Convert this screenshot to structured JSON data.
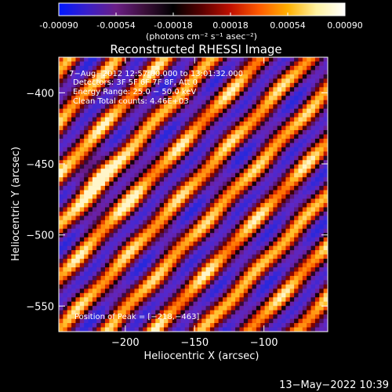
{
  "colorbar": {
    "tick_labels": [
      "-0.00090",
      "-0.00054",
      "-0.00018",
      "0.00018",
      "0.00054",
      "0.00090"
    ],
    "tick_values": [
      -0.0009,
      -0.00054,
      -0.00018,
      0.00018,
      0.00054,
      0.0009
    ],
    "range": [
      -0.0009,
      0.0009
    ],
    "units_label": "(photons cm⁻² s⁻¹ asec⁻²)",
    "palette": [
      "#0018ff",
      "#3a1fc8",
      "#6b1f86",
      "#3b0f3a",
      "#000000",
      "#5a0000",
      "#c01000",
      "#ff5a00",
      "#ffb000",
      "#fff2a0",
      "#ffffff"
    ]
  },
  "chart_data": {
    "type": "heatmap",
    "title": "Reconstructed RHESSI Image",
    "xlabel": "Heliocentric X (arcsec)",
    "ylabel": "Heliocentric Y (arcsec)",
    "xlim": [
      -248,
      -54
    ],
    "ylim": [
      -568,
      -375
    ],
    "x_ticks": [
      -200,
      -150,
      -100
    ],
    "x_tick_labels": [
      "−200",
      "−150",
      "−100"
    ],
    "y_ticks": [
      -400,
      -450,
      -500,
      -550
    ],
    "y_tick_labels": [
      "−400",
      "−450",
      "−500",
      "−550"
    ],
    "peak_position": [
      -218,
      -463
    ],
    "annotations": [
      "7−Aug−2012 12:57:00.000 to 13:01:32.000",
      "Detectors: 3F 5F 6F 7F 8F, Att 0",
      "Energy Range: 25.0 − 50.0 keV",
      "Clean     Total counts: 4.46E+03"
    ],
    "peak_label": "Position of Peak = [−218,−463]",
    "grid": false
  },
  "footer": {
    "timestamp": "13−May−2022 10:39"
  }
}
